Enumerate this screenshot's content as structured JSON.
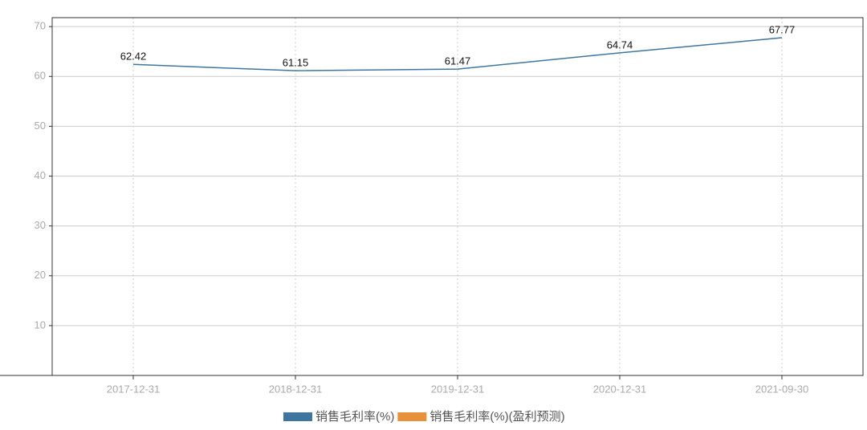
{
  "chart_data": {
    "type": "line",
    "categories": [
      "2017-12-31",
      "2018-12-31",
      "2019-12-31",
      "2020-12-31",
      "2021-09-30"
    ],
    "series": [
      {
        "name": "销售毛利率(%)",
        "color": "#3f76a0",
        "values": [
          62.42,
          61.15,
          61.47,
          64.74,
          67.77
        ]
      },
      {
        "name": "销售毛利率(%)(盈利预测)",
        "color": "#e8903a",
        "values": [
          null,
          null,
          null,
          null,
          null
        ]
      }
    ],
    "ylim": [
      0,
      71.8
    ],
    "yticks": [
      10,
      20,
      30,
      40,
      50,
      60,
      70
    ],
    "grid": true,
    "legend": "bottom"
  }
}
